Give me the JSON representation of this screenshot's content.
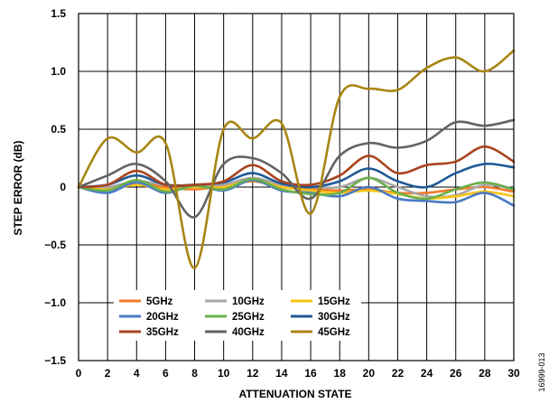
{
  "chart_data": {
    "type": "line",
    "xlabel": "ATTENUATION STATE",
    "ylabel": "STEP ERROR (dB)",
    "xlim": [
      0,
      30
    ],
    "ylim": [
      -1.5,
      1.5
    ],
    "xticks": [
      "0",
      "2",
      "4",
      "6",
      "8",
      "10",
      "12",
      "14",
      "16",
      "18",
      "20",
      "22",
      "24",
      "26",
      "28",
      "30"
    ],
    "yticks": [
      "1.5",
      "1.0",
      "0.5",
      "0",
      "−0.5",
      "−1.0",
      "−1.5"
    ],
    "ytick_values": [
      1.5,
      1.0,
      0.5,
      0,
      -0.5,
      -1.0,
      -1.5
    ],
    "grid": true,
    "legend_position": "bottom-left",
    "legend_columns": 3,
    "x": [
      0,
      2,
      4,
      6,
      8,
      10,
      12,
      14,
      16,
      18,
      20,
      22,
      24,
      26,
      28,
      30
    ],
    "series": [
      {
        "name": "5GHz",
        "color": "#f07c2a",
        "values": [
          0,
          -0.01,
          0.03,
          0.0,
          -0.02,
          0.01,
          0.05,
          0.0,
          -0.02,
          -0.03,
          -0.02,
          -0.05,
          -0.05,
          -0.02,
          0.0,
          -0.04
        ]
      },
      {
        "name": "10GHz",
        "color": "#a7a7a7",
        "values": [
          0,
          0.0,
          0.05,
          0.02,
          0.0,
          0.02,
          0.08,
          0.02,
          0.0,
          0.0,
          0.08,
          0.0,
          -0.08,
          -0.07,
          0.02,
          -0.02
        ]
      },
      {
        "name": "15GHz",
        "color": "#f9c315",
        "values": [
          0,
          -0.02,
          0.02,
          -0.02,
          0.0,
          0.0,
          0.06,
          0.0,
          -0.03,
          -0.05,
          -0.03,
          -0.06,
          -0.1,
          -0.08,
          -0.04,
          -0.08
        ]
      },
      {
        "name": "20GHz",
        "color": "#4a7bc4",
        "values": [
          0,
          -0.05,
          0.04,
          -0.05,
          0.02,
          -0.03,
          0.06,
          -0.03,
          -0.05,
          -0.08,
          0.0,
          -0.1,
          -0.12,
          -0.13,
          -0.05,
          -0.16
        ]
      },
      {
        "name": "25GHz",
        "color": "#6ab04c",
        "values": [
          0,
          -0.03,
          0.06,
          -0.04,
          0.01,
          -0.02,
          0.07,
          -0.02,
          -0.06,
          -0.05,
          0.08,
          -0.05,
          -0.1,
          -0.02,
          0.04,
          -0.02
        ]
      },
      {
        "name": "30GHz",
        "color": "#1f5a96",
        "values": [
          0,
          0.02,
          0.1,
          0.02,
          0.02,
          0.04,
          0.12,
          0.03,
          0.0,
          0.05,
          0.16,
          0.05,
          0.0,
          0.12,
          0.2,
          0.17
        ]
      },
      {
        "name": "35GHz",
        "color": "#a9431e",
        "values": [
          0,
          0.02,
          0.14,
          0.02,
          0.02,
          0.05,
          0.19,
          0.05,
          0.02,
          0.1,
          0.27,
          0.12,
          0.19,
          0.22,
          0.35,
          0.22
        ]
      },
      {
        "name": "40GHz",
        "color": "#636363",
        "values": [
          0,
          0.1,
          0.2,
          0.05,
          -0.26,
          0.2,
          0.25,
          0.12,
          -0.1,
          0.27,
          0.38,
          0.34,
          0.4,
          0.56,
          0.53,
          0.58
        ]
      },
      {
        "name": "45GHz",
        "color": "#a88512",
        "values": [
          0,
          0.42,
          0.3,
          0.38,
          -0.7,
          0.5,
          0.42,
          0.55,
          -0.23,
          0.78,
          0.85,
          0.84,
          1.03,
          1.12,
          1.0,
          1.18
        ]
      }
    ]
  },
  "figure_id": "16999-013"
}
